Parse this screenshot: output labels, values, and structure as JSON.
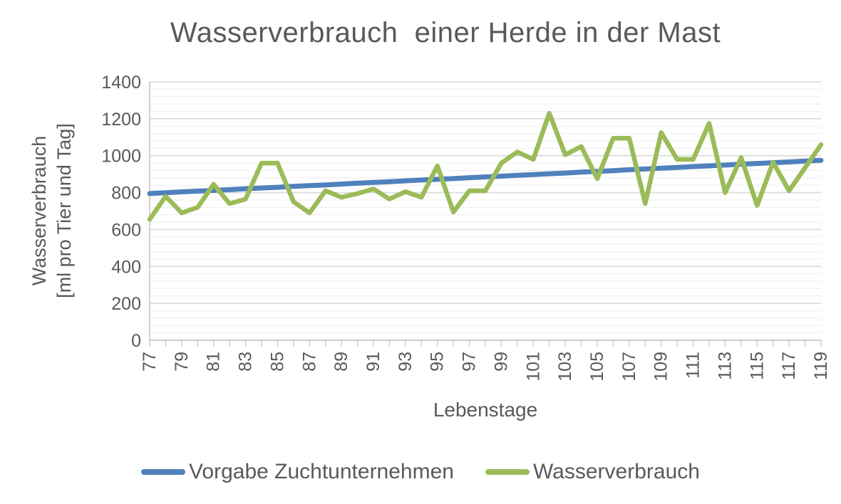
{
  "title": "Wasserverbrauch  einer Herde in der Mast",
  "chart_data": {
    "type": "line",
    "title": "Wasserverbrauch einer Herde in der Mast",
    "xlabel": "Lebenstage",
    "ylabel": "Wasserverbrauch [ml pro Tier und Tag]",
    "ylabel_line1": "Wasserverbrauch",
    "ylabel_line2": "[ml pro Tier und Tag]",
    "ylim": [
      0,
      1400
    ],
    "y_major_unit": 200,
    "y_minor_unit": 40,
    "x_label_step": 2,
    "grid": "horizontal major+minor",
    "legend_position": "bottom",
    "x": [
      77,
      78,
      79,
      80,
      81,
      82,
      83,
      84,
      85,
      86,
      87,
      88,
      89,
      90,
      91,
      92,
      93,
      94,
      95,
      96,
      97,
      98,
      99,
      100,
      101,
      102,
      103,
      104,
      105,
      106,
      107,
      108,
      109,
      110,
      111,
      112,
      113,
      114,
      115,
      116,
      117,
      118,
      119
    ],
    "series": [
      {
        "name": "Vorgabe Zuchtunternehmen",
        "color": "#4F81BD",
        "values": [
          795,
          799,
          804,
          808,
          812,
          816,
          821,
          825,
          829,
          834,
          838,
          842,
          846,
          851,
          855,
          859,
          864,
          868,
          872,
          876,
          881,
          885,
          889,
          894,
          898,
          902,
          906,
          911,
          915,
          919,
          924,
          928,
          932,
          936,
          941,
          945,
          949,
          954,
          958,
          962,
          966,
          971,
          975
        ]
      },
      {
        "name": "Wasserverbrauch",
        "color": "#9BBB59",
        "values": [
          655,
          780,
          690,
          720,
          845,
          740,
          765,
          960,
          960,
          750,
          690,
          810,
          775,
          795,
          820,
          765,
          805,
          775,
          945,
          695,
          810,
          810,
          960,
          1020,
          980,
          1230,
          1005,
          1050,
          875,
          1095,
          1095,
          740,
          1125,
          980,
          980,
          1175,
          800,
          990,
          730,
          965,
          810,
          935,
          1060
        ]
      }
    ]
  },
  "colors": {
    "text": "#595959",
    "axis_line": "#BFBFBF",
    "gridline_major": "#D9D9D9",
    "gridline_minor": "#EDEDED",
    "background": "#FFFFFF"
  }
}
